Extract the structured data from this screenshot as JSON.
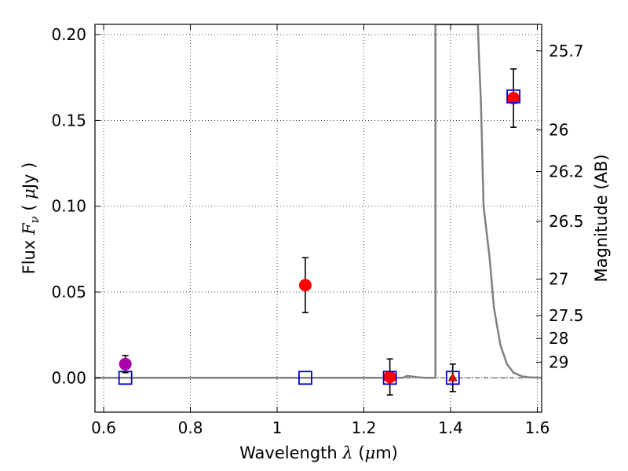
{
  "chart_data": {
    "type": "scatter",
    "title": "",
    "xlabel": {
      "prefix": "Wavelength  ",
      "symbol": "λ",
      "unit_open": " (",
      "unit_mu": "μ",
      "unit_rest": "m)"
    },
    "ylabel": {
      "prefix": "Flux  ",
      "symbol_main": "F",
      "symbol_sub": "ν",
      "unit_open": "  (  ",
      "unit_mu": "μ",
      "unit_rest": "Jy  )"
    },
    "y2label": "Magnitude (AB)",
    "xlim": [
      0.58,
      1.61
    ],
    "ylim": [
      -0.02,
      0.206
    ],
    "x_ticks": [
      0.6,
      0.8,
      1.0,
      1.2,
      1.4,
      1.6
    ],
    "x_tick_labels": [
      "0.6",
      "0.8",
      "1",
      "1.2",
      "1.4",
      "1.6"
    ],
    "y_ticks": [
      0.0,
      0.05,
      0.1,
      0.15,
      0.2
    ],
    "y_tick_labels": [
      "0.00",
      "0.05",
      "0.10",
      "0.15",
      "0.20"
    ],
    "y2_ticks": [
      25.7,
      26.0,
      26.2,
      26.5,
      27.0,
      27.5,
      28.0,
      29.0
    ],
    "y2_tick_labels": [
      "25.7",
      "26",
      "26.2",
      "26.5",
      "27",
      "27.5",
      "28",
      "29"
    ],
    "grid": true,
    "colors": {
      "detection": "#ff0000",
      "magenta_point": "#aa00aa",
      "model": "#0000cc",
      "sed": "#808080",
      "errorbar": "#000000"
    },
    "series": [
      {
        "marker": "circle",
        "color": "#ff0000",
        "points": [
          {
            "x": 1.065,
            "y": 0.054,
            "err": 0.016
          },
          {
            "x": 1.26,
            "y": 0.0005,
            "err": 0.0105
          },
          {
            "x": 1.545,
            "y": 0.163,
            "err": 0.017
          }
        ]
      },
      {
        "marker": "circle",
        "color": "#aa00aa",
        "points": [
          {
            "x": 0.65,
            "y": 0.008,
            "err": 0.005
          }
        ]
      },
      {
        "marker": "triangle",
        "color": "#ff0000",
        "points": [
          {
            "x": 1.405,
            "y": 0.0,
            "err": 0.008
          }
        ]
      },
      {
        "marker": "square-open",
        "color": "#0000cc",
        "points": [
          {
            "x": 0.65,
            "y": 0.0
          },
          {
            "x": 1.065,
            "y": 0.0
          },
          {
            "x": 1.26,
            "y": 0.0
          },
          {
            "x": 1.405,
            "y": 0.0
          },
          {
            "x": 1.545,
            "y": 0.164
          }
        ]
      },
      {
        "type": "line",
        "color": "#808080",
        "points": [
          {
            "x": 0.58,
            "y": 0.0
          },
          {
            "x": 1.29,
            "y": 0.0
          },
          {
            "x": 1.3,
            "y": 0.0012
          },
          {
            "x": 1.32,
            "y": 0.0004
          },
          {
            "x": 1.34,
            "y": 0.0
          },
          {
            "x": 1.365,
            "y": 0.0
          },
          {
            "x": 1.365,
            "y": 0.206
          },
          {
            "x": 1.463,
            "y": 0.206
          },
          {
            "x": 1.465,
            "y": 0.19
          },
          {
            "x": 1.47,
            "y": 0.16
          },
          {
            "x": 1.476,
            "y": 0.1
          },
          {
            "x": 1.49,
            "y": 0.07
          },
          {
            "x": 1.5,
            "y": 0.041
          },
          {
            "x": 1.515,
            "y": 0.019
          },
          {
            "x": 1.53,
            "y": 0.008
          },
          {
            "x": 1.545,
            "y": 0.003
          },
          {
            "x": 1.565,
            "y": 0.0008
          },
          {
            "x": 1.58,
            "y": 0.0003
          },
          {
            "x": 1.61,
            "y": 0.0
          }
        ]
      }
    ]
  }
}
